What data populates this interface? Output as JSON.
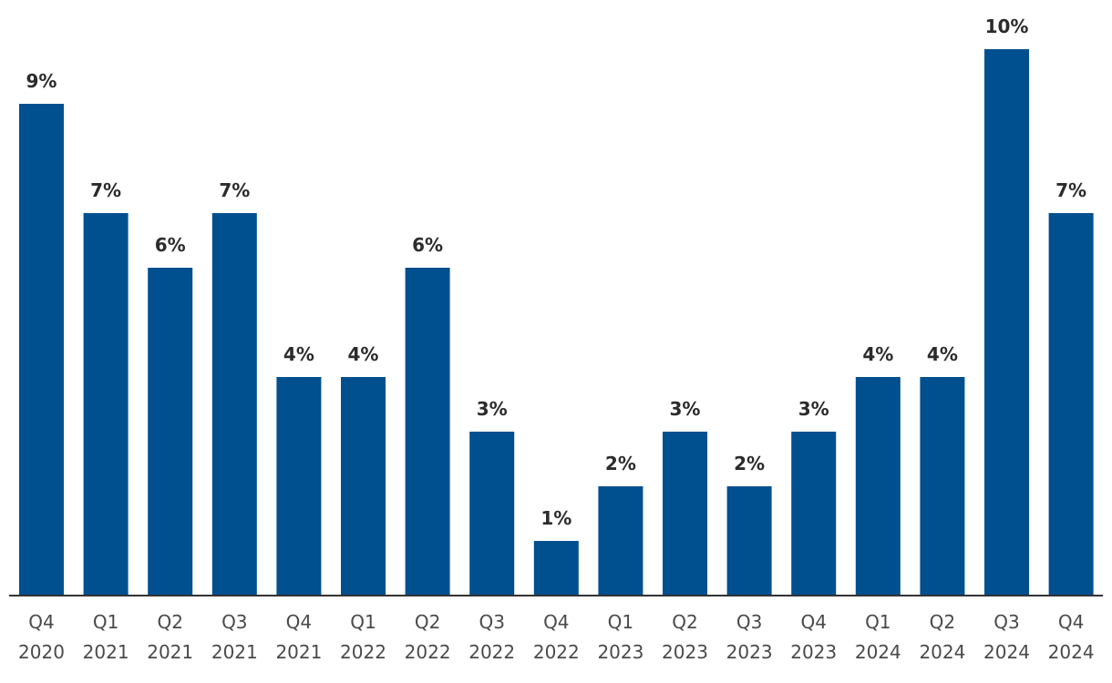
{
  "chart_data": {
    "type": "bar",
    "title": "",
    "xlabel": "",
    "ylabel": "",
    "categories": [
      [
        "Q4",
        "2020"
      ],
      [
        "Q1",
        "2021"
      ],
      [
        "Q2",
        "2021"
      ],
      [
        "Q3",
        "2021"
      ],
      [
        "Q4",
        "2021"
      ],
      [
        "Q1",
        "2022"
      ],
      [
        "Q2",
        "2022"
      ],
      [
        "Q3",
        "2022"
      ],
      [
        "Q4",
        "2022"
      ],
      [
        "Q1",
        "2023"
      ],
      [
        "Q2",
        "2023"
      ],
      [
        "Q3",
        "2023"
      ],
      [
        "Q4",
        "2023"
      ],
      [
        "Q1",
        "2024"
      ],
      [
        "Q2",
        "2024"
      ],
      [
        "Q3",
        "2024"
      ],
      [
        "Q4",
        "2024"
      ]
    ],
    "values": [
      9,
      7,
      6,
      7,
      4,
      4,
      6,
      3,
      1,
      2,
      3,
      2,
      3,
      4,
      4,
      10,
      7
    ],
    "value_labels": [
      "9%",
      "7%",
      "6%",
      "7%",
      "4%",
      "4%",
      "6%",
      "3%",
      "1%",
      "2%",
      "3%",
      "2%",
      "3%",
      "4%",
      "4%",
      "10%",
      "7%"
    ],
    "unit": "%",
    "ylim": [
      0,
      10
    ],
    "grid": false,
    "legend": "none",
    "colors": {
      "bar": "#004f8f",
      "value_label": "#2b2b2b",
      "tick_label": "#4a4a4a",
      "axis": "#333333"
    }
  }
}
